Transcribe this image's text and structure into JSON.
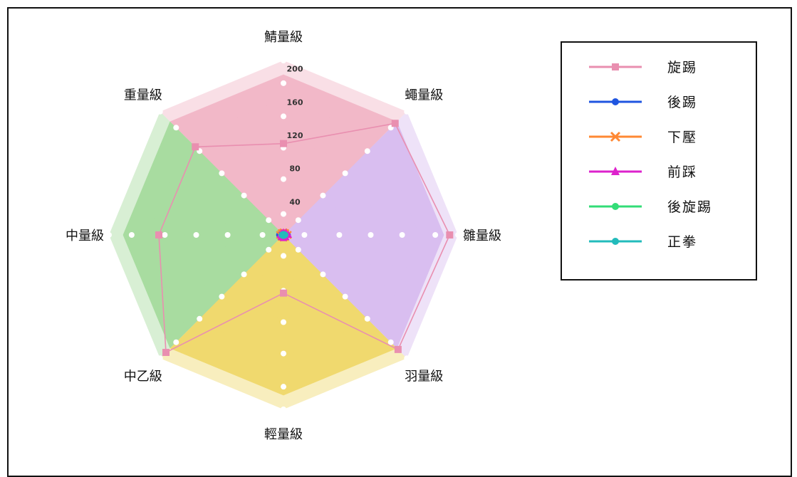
{
  "chart_data": {
    "type": "radar",
    "categories": [
      "輕量級",
      "羽量級",
      "雛量級",
      "蠅量級",
      "鯖量級",
      "重量級",
      "中量級",
      "中乙級"
    ],
    "r_ticks": [
      "40",
      "80",
      "120",
      "160",
      "200"
    ],
    "r_range": [
      0,
      210
    ],
    "sector_colors": [
      "#f0d96e",
      "#d9bef0",
      "#d9bef0",
      "#f2b8c8",
      "#f2b8c8",
      "#a8dca0",
      "#a8dca0",
      "#f0d96e"
    ],
    "series": [
      {
        "name": "旋踢",
        "color": "#e98fb0",
        "marker": "s",
        "values": [
          70,
          195,
          200,
          190,
          110,
          150,
          150,
          200
        ]
      },
      {
        "name": "後踢",
        "color": "#1f55e0",
        "marker": "o",
        "values": [
          3,
          3,
          5,
          4,
          3,
          3,
          5,
          4
        ]
      },
      {
        "name": "下壓",
        "color": "#ff8833",
        "marker": "x",
        "values": [
          3,
          3,
          5,
          3,
          3,
          3,
          4,
          3
        ]
      },
      {
        "name": "前踩",
        "color": "#dd22cc",
        "marker": "^",
        "values": [
          4,
          4,
          6,
          4,
          3,
          3,
          4,
          4
        ]
      },
      {
        "name": "後旋踢",
        "color": "#33dd77",
        "marker": "o",
        "values": [
          1,
          1,
          2,
          1,
          1,
          1,
          2,
          1
        ]
      },
      {
        "name": "正拳",
        "color": "#22bbbb",
        "marker": "o",
        "values": [
          1,
          1,
          2,
          1,
          1,
          1,
          2,
          1
        ]
      }
    ],
    "legend_position": "right"
  }
}
